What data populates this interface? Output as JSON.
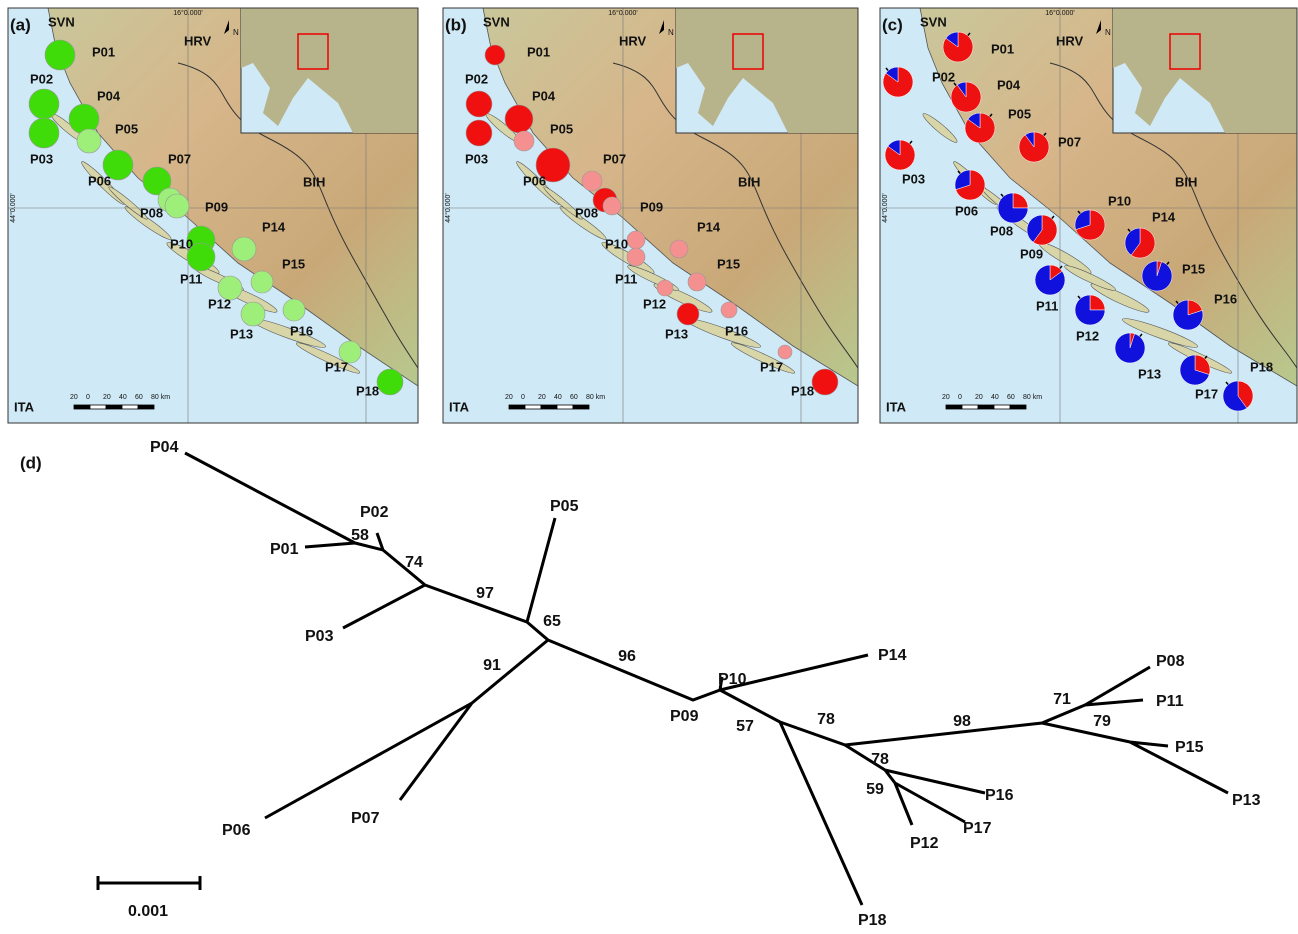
{
  "map_text": {
    "countries": [
      "SVN",
      "HRV",
      "BIH",
      "ITA"
    ],
    "lon": "16°0.000'",
    "lat": "44°0.000'",
    "scale": [
      "20",
      "0",
      "20",
      "40",
      "60",
      "80 km"
    ],
    "north": "N"
  },
  "panels": [
    {
      "label": "(a)",
      "sites": [
        {
          "name": "P01",
          "color": "#3fdc0a"
        },
        {
          "name": "P02",
          "color": "#3fdc0a"
        },
        {
          "name": "P03",
          "color": "#3fdc0a"
        },
        {
          "name": "P04",
          "color": "#3fdc0a"
        },
        {
          "name": "P05",
          "color": "#9def7a"
        },
        {
          "name": "P06",
          "color": "#3fdc0a"
        },
        {
          "name": "P07",
          "color": "#3fdc0a"
        },
        {
          "name": "P08",
          "color": "#9def7a"
        },
        {
          "name": "P09",
          "color": "#9def7a"
        },
        {
          "name": "P10",
          "color": "#3fdc0a"
        },
        {
          "name": "P11",
          "color": "#3fdc0a"
        },
        {
          "name": "P12",
          "color": "#9def7a"
        },
        {
          "name": "P13",
          "color": "#9def7a"
        },
        {
          "name": "P14",
          "color": "#9def7a"
        },
        {
          "name": "P15",
          "color": "#9def7a"
        },
        {
          "name": "P16",
          "color": "#9def7a"
        },
        {
          "name": "P17",
          "color": "#9def7a"
        },
        {
          "name": "P18",
          "color": "#3fdc0a"
        }
      ]
    },
    {
      "label": "(b)",
      "sites": [
        {
          "name": "P01",
          "color": "#f01010"
        },
        {
          "name": "P02",
          "color": "#f01010"
        },
        {
          "name": "P03",
          "color": "#f01010"
        },
        {
          "name": "P04",
          "color": "#f01010"
        },
        {
          "name": "P05",
          "color": "#f49090"
        },
        {
          "name": "P06",
          "color": "#f01010"
        },
        {
          "name": "P07",
          "color": "#f49090"
        },
        {
          "name": "P08",
          "color": "#f01010"
        },
        {
          "name": "P09",
          "color": "#f49090"
        },
        {
          "name": "P10",
          "color": "#f49090"
        },
        {
          "name": "P11",
          "color": "#f49090"
        },
        {
          "name": "P12",
          "color": "#f49090"
        },
        {
          "name": "P13",
          "color": "#f01010"
        },
        {
          "name": "P14",
          "color": "#f49090"
        },
        {
          "name": "P15",
          "color": "#f49090"
        },
        {
          "name": "P16",
          "color": "#f49090"
        },
        {
          "name": "P17",
          "color": "#f49090"
        },
        {
          "name": "P18",
          "color": "#f01010"
        }
      ]
    },
    {
      "label": "(c)",
      "colors": [
        "#ee1111",
        "#1111dd"
      ],
      "sites": [
        {
          "name": "P01",
          "red_share": 0.85
        },
        {
          "name": "P02",
          "red_share": 0.85
        },
        {
          "name": "P03",
          "red_share": 0.85
        },
        {
          "name": "P04",
          "red_share": 0.9
        },
        {
          "name": "P05",
          "red_share": 0.85
        },
        {
          "name": "P06",
          "red_share": 0.7
        },
        {
          "name": "P07",
          "red_share": 0.9
        },
        {
          "name": "P08",
          "red_share": 0.25
        },
        {
          "name": "P09",
          "red_share": 0.6
        },
        {
          "name": "P10",
          "red_share": 0.7
        },
        {
          "name": "P11",
          "red_share": 0.15
        },
        {
          "name": "P12",
          "red_share": 0.25
        },
        {
          "name": "P13",
          "red_share": 0.05
        },
        {
          "name": "P14",
          "red_share": 0.6
        },
        {
          "name": "P15",
          "red_share": 0.05
        },
        {
          "name": "P16",
          "red_share": 0.2
        },
        {
          "name": "P17",
          "red_share": 0.3
        },
        {
          "name": "P18",
          "red_share": 0.4
        }
      ]
    }
  ],
  "tree": {
    "label": "(d)",
    "tips": [
      "P04",
      "P01",
      "P02",
      "P03",
      "P05",
      "P06",
      "P07",
      "P09",
      "P10",
      "P14",
      "P18",
      "P16",
      "P17",
      "P12",
      "P08",
      "P11",
      "P15",
      "P13"
    ],
    "support": [
      58,
      74,
      97,
      65,
      91,
      96,
      57,
      78,
      78,
      59,
      98,
      71,
      79
    ],
    "scale": "0.001"
  }
}
